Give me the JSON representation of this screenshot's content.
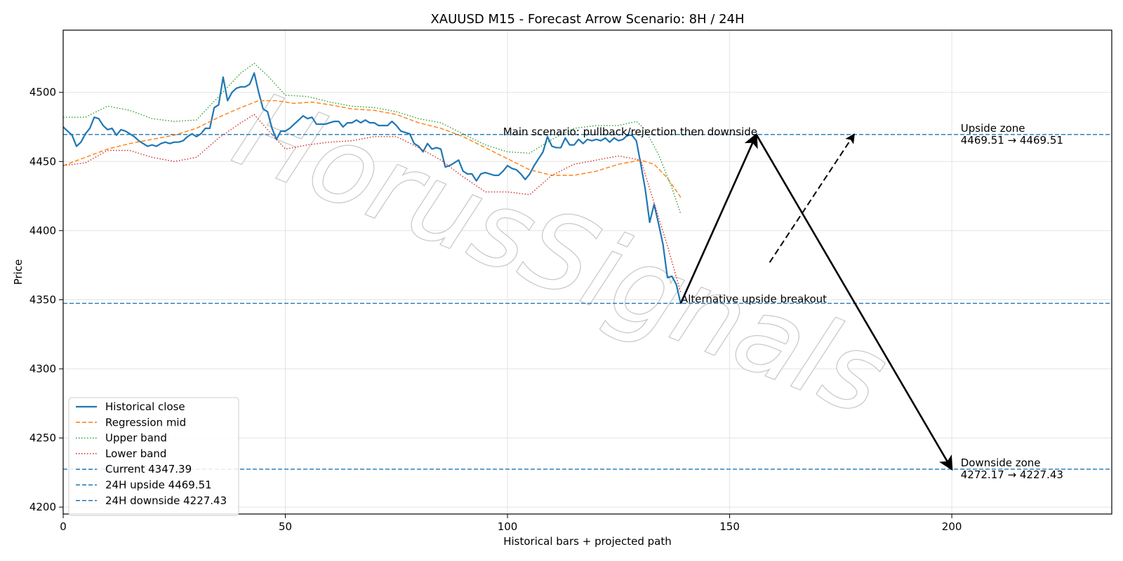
{
  "chart_data": {
    "type": "line",
    "title": "XAUUSD M15 - Forecast Arrow Scenario: 8H / 24H",
    "xlabel": "Historical bars + projected path",
    "ylabel": "Price",
    "xlim": [
      0,
      236
    ],
    "ylim": [
      4195,
      4545
    ],
    "xticks": [
      0,
      50,
      100,
      150,
      200
    ],
    "yticks": [
      4200,
      4250,
      4300,
      4350,
      4400,
      4450,
      4500
    ],
    "grid": true,
    "legend_position": "lower-left",
    "watermark": "HorusSignals",
    "series": [
      {
        "name": "Historical close",
        "color": "#1f77b4",
        "style": "solid",
        "points": [
          [
            0,
            4475
          ],
          [
            1,
            4472
          ],
          [
            2,
            4469
          ],
          [
            3,
            4461
          ],
          [
            4,
            4464
          ],
          [
            5,
            4470
          ],
          [
            6,
            4474
          ],
          [
            7,
            4482
          ],
          [
            8,
            4481
          ],
          [
            9,
            4476
          ],
          [
            10,
            4473
          ],
          [
            11,
            4474
          ],
          [
            12,
            4469
          ],
          [
            13,
            4473
          ],
          [
            14,
            4472
          ],
          [
            15,
            4470
          ],
          [
            16,
            4468
          ],
          [
            17,
            4465
          ],
          [
            18,
            4463
          ],
          [
            19,
            4461
          ],
          [
            20,
            4462
          ],
          [
            21,
            4461
          ],
          [
            22,
            4463
          ],
          [
            23,
            4464
          ],
          [
            24,
            4463
          ],
          [
            25,
            4464
          ],
          [
            26,
            4464
          ],
          [
            27,
            4465
          ],
          [
            28,
            4468
          ],
          [
            29,
            4470
          ],
          [
            30,
            4468
          ],
          [
            31,
            4470
          ],
          [
            32,
            4474
          ],
          [
            33,
            4474
          ],
          [
            34,
            4489
          ],
          [
            35,
            4491
          ],
          [
            36,
            4511
          ],
          [
            37,
            4494
          ],
          [
            38,
            4500
          ],
          [
            39,
            4503
          ],
          [
            40,
            4504
          ],
          [
            41,
            4504
          ],
          [
            42,
            4506
          ],
          [
            43,
            4514
          ],
          [
            44,
            4500
          ],
          [
            45,
            4488
          ],
          [
            46,
            4486
          ],
          [
            47,
            4474
          ],
          [
            48,
            4466
          ],
          [
            49,
            4472
          ],
          [
            50,
            4472
          ],
          [
            51,
            4474
          ],
          [
            52,
            4477
          ],
          [
            53,
            4480
          ],
          [
            54,
            4483
          ],
          [
            55,
            4481
          ],
          [
            56,
            4482
          ],
          [
            57,
            4477
          ],
          [
            58,
            4477
          ],
          [
            59,
            4477
          ],
          [
            60,
            4478
          ],
          [
            61,
            4479
          ],
          [
            62,
            4479
          ],
          [
            63,
            4475
          ],
          [
            64,
            4478
          ],
          [
            65,
            4478
          ],
          [
            66,
            4480
          ],
          [
            67,
            4478
          ],
          [
            68,
            4480
          ],
          [
            69,
            4478
          ],
          [
            70,
            4478
          ],
          [
            71,
            4476
          ],
          [
            72,
            4476
          ],
          [
            73,
            4476
          ],
          [
            74,
            4479
          ],
          [
            75,
            4476
          ],
          [
            76,
            4472
          ],
          [
            77,
            4471
          ],
          [
            78,
            4470
          ],
          [
            79,
            4463
          ],
          [
            80,
            4461
          ],
          [
            81,
            4457
          ],
          [
            82,
            4463
          ],
          [
            83,
            4459
          ],
          [
            84,
            4460
          ],
          [
            85,
            4459
          ],
          [
            86,
            4446
          ],
          [
            87,
            4447
          ],
          [
            88,
            4449
          ],
          [
            89,
            4451
          ],
          [
            90,
            4443
          ],
          [
            91,
            4441
          ],
          [
            92,
            4441
          ],
          [
            93,
            4436
          ],
          [
            94,
            4441
          ],
          [
            95,
            4442
          ],
          [
            96,
            4441
          ],
          [
            97,
            4440
          ],
          [
            98,
            4440
          ],
          [
            99,
            4443
          ],
          [
            100,
            4447
          ],
          [
            101,
            4445
          ],
          [
            102,
            4444
          ],
          [
            103,
            4441
          ],
          [
            104,
            4437
          ],
          [
            105,
            4441
          ],
          [
            106,
            4447
          ],
          [
            107,
            4452
          ],
          [
            108,
            4457
          ],
          [
            109,
            4468
          ],
          [
            110,
            4461
          ],
          [
            111,
            4460
          ],
          [
            112,
            4460
          ],
          [
            113,
            4467
          ],
          [
            114,
            4462
          ],
          [
            115,
            4462
          ],
          [
            116,
            4466
          ],
          [
            117,
            4463
          ],
          [
            118,
            4466
          ],
          [
            119,
            4465
          ],
          [
            120,
            4466
          ],
          [
            121,
            4465
          ],
          [
            122,
            4467
          ],
          [
            123,
            4464
          ],
          [
            124,
            4467
          ],
          [
            125,
            4465
          ],
          [
            126,
            4466
          ],
          [
            127,
            4469
          ],
          [
            128,
            4469
          ],
          [
            129,
            4465
          ],
          [
            130,
            4448
          ],
          [
            131,
            4430
          ],
          [
            132,
            4406
          ],
          [
            133,
            4419
          ],
          [
            134,
            4405
          ],
          [
            135,
            4390
          ],
          [
            136,
            4366
          ],
          [
            137,
            4367
          ],
          [
            138,
            4361
          ],
          [
            139,
            4347
          ]
        ]
      },
      {
        "name": "Regression mid",
        "color": "#ff7f0e",
        "style": "dashed",
        "points": [
          [
            0,
            4447
          ],
          [
            5,
            4453
          ],
          [
            10,
            4459
          ],
          [
            15,
            4463
          ],
          [
            20,
            4466
          ],
          [
            25,
            4469
          ],
          [
            30,
            4474
          ],
          [
            35,
            4482
          ],
          [
            40,
            4489
          ],
          [
            44,
            4494
          ],
          [
            48,
            4494
          ],
          [
            52,
            4492
          ],
          [
            56,
            4493
          ],
          [
            60,
            4491
          ],
          [
            65,
            4488
          ],
          [
            70,
            4487
          ],
          [
            75,
            4484
          ],
          [
            80,
            4478
          ],
          [
            85,
            4474
          ],
          [
            90,
            4468
          ],
          [
            95,
            4460
          ],
          [
            100,
            4452
          ],
          [
            105,
            4444
          ],
          [
            110,
            4440
          ],
          [
            115,
            4440
          ],
          [
            120,
            4443
          ],
          [
            125,
            4448
          ],
          [
            130,
            4451
          ],
          [
            133,
            4448
          ],
          [
            136,
            4438
          ],
          [
            139,
            4424
          ]
        ]
      },
      {
        "name": "Upper band",
        "color": "#2ca02c",
        "style": "dotted",
        "points": [
          [
            0,
            4482
          ],
          [
            5,
            4482
          ],
          [
            10,
            4490
          ],
          [
            15,
            4487
          ],
          [
            20,
            4481
          ],
          [
            25,
            4479
          ],
          [
            30,
            4480
          ],
          [
            35,
            4497
          ],
          [
            40,
            4514
          ],
          [
            43,
            4521
          ],
          [
            46,
            4512
          ],
          [
            50,
            4498
          ],
          [
            55,
            4497
          ],
          [
            60,
            4493
          ],
          [
            65,
            4490
          ],
          [
            70,
            4489
          ],
          [
            75,
            4486
          ],
          [
            80,
            4481
          ],
          [
            85,
            4478
          ],
          [
            90,
            4470
          ],
          [
            95,
            4462
          ],
          [
            100,
            4457
          ],
          [
            105,
            4456
          ],
          [
            110,
            4466
          ],
          [
            115,
            4474
          ],
          [
            120,
            4476
          ],
          [
            125,
            4476
          ],
          [
            129,
            4479
          ],
          [
            131,
            4473
          ],
          [
            134,
            4455
          ],
          [
            137,
            4431
          ],
          [
            139,
            4412
          ]
        ]
      },
      {
        "name": "Lower band",
        "color": "#d62728",
        "style": "dotted",
        "points": [
          [
            0,
            4447
          ],
          [
            5,
            4449
          ],
          [
            10,
            4458
          ],
          [
            15,
            4458
          ],
          [
            20,
            4453
          ],
          [
            25,
            4450
          ],
          [
            30,
            4453
          ],
          [
            35,
            4467
          ],
          [
            40,
            4478
          ],
          [
            43,
            4484
          ],
          [
            46,
            4473
          ],
          [
            50,
            4459
          ],
          [
            55,
            4462
          ],
          [
            60,
            4464
          ],
          [
            65,
            4465
          ],
          [
            70,
            4468
          ],
          [
            75,
            4468
          ],
          [
            80,
            4460
          ],
          [
            85,
            4451
          ],
          [
            90,
            4439
          ],
          [
            95,
            4428
          ],
          [
            100,
            4428
          ],
          [
            105,
            4426
          ],
          [
            110,
            4440
          ],
          [
            115,
            4448
          ],
          [
            120,
            4451
          ],
          [
            125,
            4454
          ],
          [
            130,
            4451
          ],
          [
            133,
            4420
          ],
          [
            136,
            4389
          ],
          [
            139,
            4355
          ]
        ]
      }
    ],
    "hlines": [
      {
        "name": "Current 4347.39",
        "y": 4347.39,
        "color": "#1f77b4",
        "style": "dashed"
      },
      {
        "name": "24H upside 4469.51",
        "y": 4469.51,
        "color": "#1f77b4",
        "style": "dashed"
      },
      {
        "name": "24H downside 4227.43",
        "y": 4227.43,
        "color": "#1f77b4",
        "style": "dashed"
      }
    ],
    "arrows": [
      {
        "name": "main-up-arrow",
        "from": [
          139,
          4347.39
        ],
        "to": [
          156,
          4469.51
        ],
        "style": "solid"
      },
      {
        "name": "main-down-arrow",
        "from": [
          156,
          4469.51
        ],
        "to": [
          200,
          4227.43
        ],
        "style": "solid"
      },
      {
        "name": "alt-up-arrow",
        "from": [
          159,
          4377
        ],
        "to": [
          178,
          4469.51
        ],
        "style": "dashed"
      }
    ],
    "annotations": [
      {
        "name": "main-scenario-label",
        "text": "Main scenario: pullback/rejection then downside",
        "x": 99,
        "y": 4469,
        "anchor": "start"
      },
      {
        "name": "alt-scenario-label",
        "text": "Alternative upside breakout",
        "x": 139,
        "y": 4348,
        "anchor": "start"
      },
      {
        "name": "upside-zone-label",
        "lines": [
          "Upside zone",
          "4469.51 → 4469.51"
        ],
        "x": 202,
        "y": 4469.51
      },
      {
        "name": "downside-zone-label",
        "lines": [
          "Downside zone",
          "4272.17 → 4227.43"
        ],
        "x": 202,
        "y": 4227.43
      }
    ]
  }
}
